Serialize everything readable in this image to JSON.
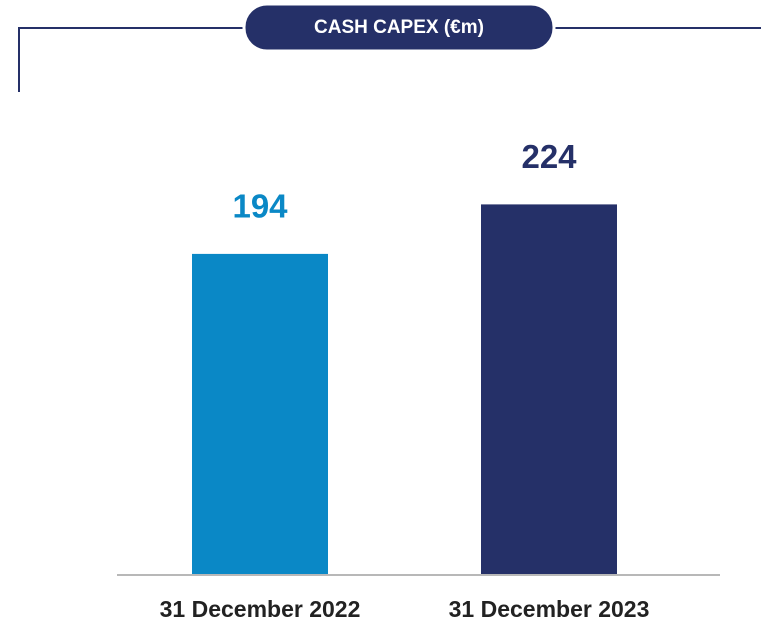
{
  "chart_data": {
    "type": "bar",
    "title": "CASH CAPEX (€m)",
    "categories": [
      "31 December 2022",
      "31 December 2023"
    ],
    "values": [
      194,
      224
    ],
    "colors": [
      "#0a88c6",
      "#253068"
    ]
  }
}
